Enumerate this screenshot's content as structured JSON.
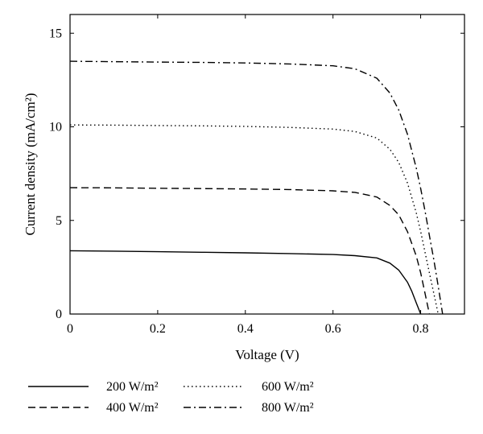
{
  "chart_data": {
    "type": "line",
    "xlabel": "Voltage (V)",
    "ylabel": "Current density (mA/cm²)",
    "xlim": [
      0,
      0.9
    ],
    "ylim": [
      0,
      16
    ],
    "xticks": [
      0,
      0.2,
      0.4,
      0.6,
      0.8
    ],
    "yticks": [
      0,
      5,
      10,
      15
    ],
    "grid": false,
    "legend_position": "below-plot",
    "series": [
      {
        "name": "200 W/m²",
        "style": "solid",
        "x": [
          0,
          0.1,
          0.2,
          0.3,
          0.4,
          0.5,
          0.6,
          0.65,
          0.7,
          0.73,
          0.75,
          0.77,
          0.78,
          0.79,
          0.8
        ],
        "y": [
          3.38,
          3.36,
          3.33,
          3.3,
          3.27,
          3.23,
          3.18,
          3.12,
          3.0,
          2.72,
          2.35,
          1.7,
          1.2,
          0.6,
          0
        ]
      },
      {
        "name": "400 W/m²",
        "style": "dashed",
        "x": [
          0,
          0.1,
          0.2,
          0.3,
          0.4,
          0.5,
          0.6,
          0.65,
          0.7,
          0.73,
          0.75,
          0.77,
          0.79,
          0.8,
          0.81,
          0.82
        ],
        "y": [
          6.75,
          6.74,
          6.72,
          6.7,
          6.68,
          6.65,
          6.58,
          6.5,
          6.25,
          5.8,
          5.3,
          4.4,
          3.1,
          2.2,
          1.1,
          0
        ]
      },
      {
        "name": "600 W/m²",
        "style": "dotted",
        "x": [
          0,
          0.1,
          0.2,
          0.3,
          0.4,
          0.5,
          0.6,
          0.65,
          0.7,
          0.73,
          0.75,
          0.77,
          0.79,
          0.8,
          0.81,
          0.82,
          0.83,
          0.84
        ],
        "y": [
          10.1,
          10.09,
          10.07,
          10.05,
          10.02,
          9.97,
          9.88,
          9.75,
          9.4,
          8.8,
          8.1,
          7.0,
          5.4,
          4.4,
          3.3,
          2.2,
          1.1,
          0
        ]
      },
      {
        "name": "800 W/m²",
        "style": "dash-dot",
        "x": [
          0,
          0.1,
          0.2,
          0.3,
          0.4,
          0.5,
          0.6,
          0.65,
          0.7,
          0.73,
          0.75,
          0.77,
          0.79,
          0.8,
          0.81,
          0.82,
          0.83,
          0.84,
          0.85
        ],
        "y": [
          13.5,
          13.48,
          13.46,
          13.44,
          13.41,
          13.36,
          13.26,
          13.1,
          12.6,
          11.8,
          10.9,
          9.6,
          7.8,
          6.7,
          5.5,
          4.2,
          2.9,
          1.5,
          0
        ]
      }
    ]
  }
}
